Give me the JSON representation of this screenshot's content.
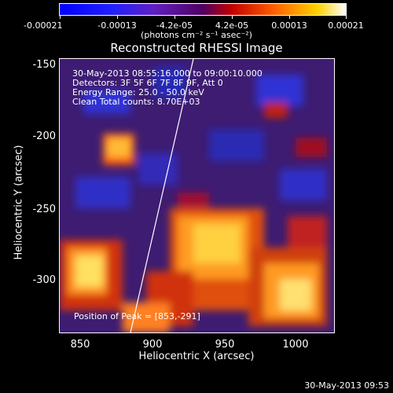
{
  "colorbar": {
    "ticks": [
      "-0.00021",
      "-0.00013",
      "-4.2e-05",
      "4.2e-05",
      "0.00013",
      "0.00021"
    ],
    "units": "(photons cm⁻² s⁻¹ asec⁻²)"
  },
  "plot": {
    "title": "Reconstructed RHESSI Image",
    "xlabel": "Heliocentric X (arcsec)",
    "ylabel": "Heliocentric Y (arcsec)",
    "x_ticks": [
      "850",
      "900",
      "950",
      "1000"
    ],
    "y_ticks": [
      "-150",
      "-200",
      "-250",
      "-300"
    ],
    "info": {
      "line1": "30-May-2013 08:55:16.000 to 09:00:10.000",
      "line2": "Detectors: 3F 5F 6F 7F 8F 9F, Att 0",
      "line3": "Energy Range: 25.0 - 50.0 keV",
      "line4": "Clean     Total counts: 8.70E+03"
    },
    "peak": "Position of Peak = [853,-291]"
  },
  "footer": {
    "timestamp": "30-May-2013 09:53"
  }
}
